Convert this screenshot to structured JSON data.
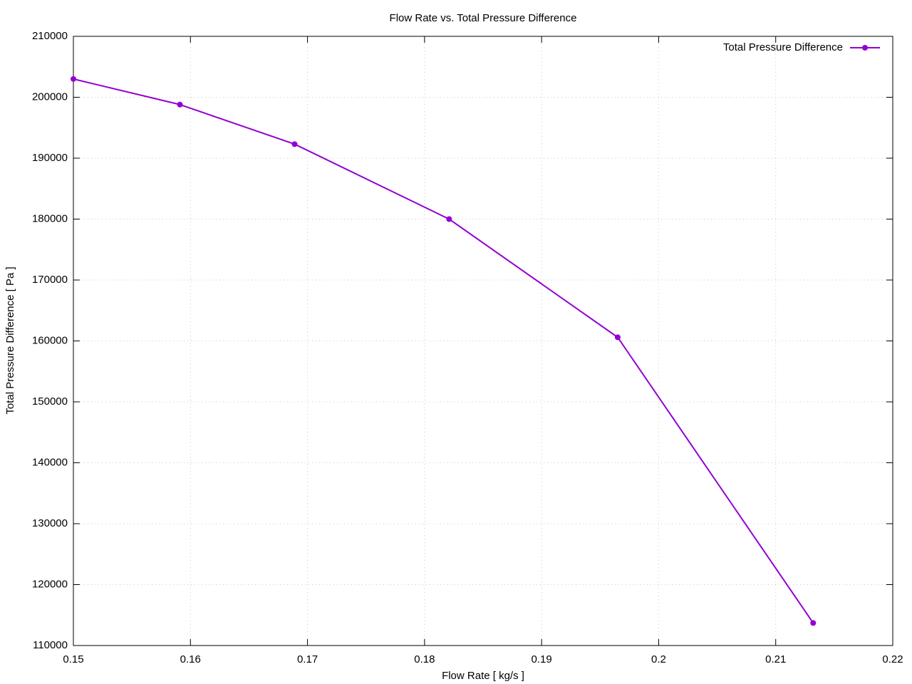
{
  "chart_data": {
    "type": "line",
    "title": "Flow Rate vs. Total Pressure Difference",
    "x_label": "Flow Rate [ kg/s ]",
    "y_label": "Total Pressure Difference [ Pa ]",
    "x": [
      0.15,
      0.1591,
      0.1689,
      0.1821,
      0.1965,
      0.2132
    ],
    "series": [
      {
        "name": "Total Pressure Difference",
        "color": "#9400d3",
        "values": [
          203000,
          198800,
          192300,
          180000,
          160600,
          113700
        ]
      }
    ],
    "xlim": [
      0.15,
      0.22
    ],
    "xticks": [
      0.15,
      0.16,
      0.17,
      0.18,
      0.19,
      0.2,
      0.21,
      0.22
    ],
    "ylim": [
      110000,
      210000
    ],
    "yticks": [
      110000,
      120000,
      130000,
      140000,
      150000,
      160000,
      170000,
      180000,
      190000,
      200000,
      210000
    ],
    "grid": true,
    "legend": "top-right"
  }
}
